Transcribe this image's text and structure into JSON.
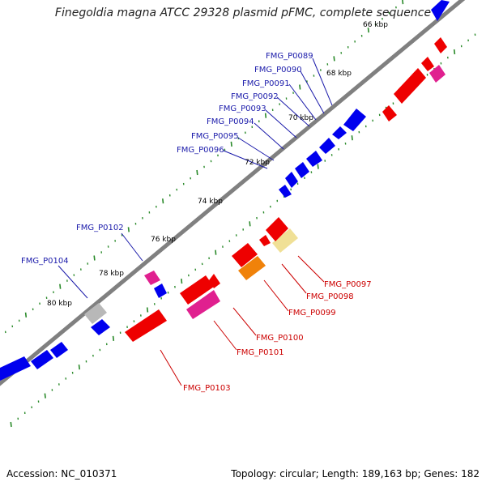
{
  "title": "Finegoldia magna ATCC 29328 plasmid pFMC, complete sequence",
  "footer": {
    "accession": "Accession: NC_010371",
    "summary": "Topology: circular; Length: 189,163 bp; Genes: 182"
  },
  "colors": {
    "backbone": "#808080",
    "tick": "#2a8a2a",
    "forward_gene": "#0000ee",
    "forward_label": "#1a1aaa",
    "reverse_label": "#cc0000",
    "red": "#ee0000",
    "pink": "#e0208f",
    "orange": "#f0820a",
    "khaki": "#f0e096",
    "grey": "#b8b8b8"
  },
  "axis_labels": [
    "66 kbp",
    "68 kbp",
    "70 kbp",
    "72 kbp",
    "74 kbp",
    "76 kbp",
    "78 kbp",
    "80 kbp"
  ],
  "forward_labels": [
    "FMG_P0089",
    "FMG_P0090",
    "FMG_P0091",
    "FMG_P0092",
    "FMG_P0093",
    "FMG_P0094",
    "FMG_P0095",
    "FMG_P0096",
    "FMG_P0102",
    "FMG_P0104"
  ],
  "reverse_labels": [
    "FMG_P0097",
    "FMG_P0098",
    "FMG_P0099",
    "FMG_P0100",
    "FMG_P0101",
    "FMG_P0103"
  ]
}
